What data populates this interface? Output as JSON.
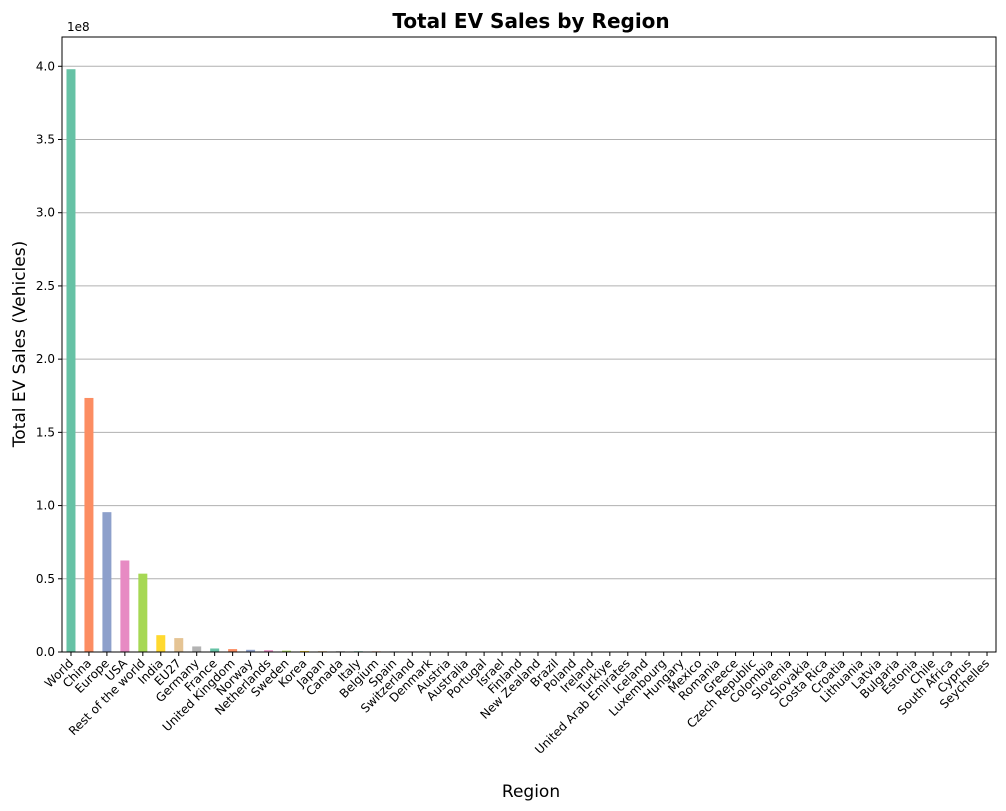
{
  "chart_data": {
    "type": "bar",
    "title": "Total EV Sales by Region",
    "xlabel": "Region",
    "ylabel": "Total EV Sales (Vehicles)",
    "y_offset_label": "1e8",
    "ylim": [
      0,
      420000000
    ],
    "yticks": [
      0,
      50000000,
      100000000,
      150000000,
      200000000,
      250000000,
      300000000,
      350000000,
      400000000
    ],
    "ytick_labels": [
      "0.0",
      "0.5",
      "1.0",
      "1.5",
      "2.0",
      "2.5",
      "3.0",
      "3.5",
      "4.0"
    ],
    "grid": "y",
    "categories": [
      "World",
      "China",
      "Europe",
      "USA",
      "Rest of the world",
      "India",
      "EU27",
      "Germany",
      "France",
      "United Kingdom",
      "Norway",
      "Netherlands",
      "Sweden",
      "Korea",
      "Japan",
      "Canada",
      "Italy",
      "Belgium",
      "Spain",
      "Switzerland",
      "Denmark",
      "Austria",
      "Australia",
      "Portugal",
      "Israel",
      "Finland",
      "New Zealand",
      "Brazil",
      "Poland",
      "Ireland",
      "Turkiye",
      "United Arab Emirates",
      "Iceland",
      "Luxembourg",
      "Hungary",
      "Mexico",
      "Romania",
      "Greece",
      "Czech Republic",
      "Colombia",
      "Slovenia",
      "Slovakia",
      "Costa Rica",
      "Croatia",
      "Lithuania",
      "Latvia",
      "Bulgaria",
      "Estonia",
      "Chile",
      "South Africa",
      "Cyprus",
      "Seychelles"
    ],
    "values": [
      398000000,
      173500000,
      95500000,
      62500000,
      53500000,
      11500000,
      9500000,
      3800000,
      2400000,
      2000000,
      1500000,
      1200000,
      900000,
      700000,
      600000,
      550000,
      500000,
      450000,
      400000,
      380000,
      350000,
      320000,
      300000,
      250000,
      230000,
      200000,
      180000,
      160000,
      150000,
      140000,
      130000,
      120000,
      110000,
      100000,
      90000,
      80000,
      75000,
      70000,
      65000,
      55000,
      50000,
      45000,
      40000,
      35000,
      30000,
      25000,
      22000,
      20000,
      15000,
      10000,
      5000,
      1000
    ],
    "palette": [
      "#66c2a5",
      "#fc8d62",
      "#8da0cb",
      "#e78ac3",
      "#a6d854",
      "#ffd92f",
      "#e5c494",
      "#b3b3b3"
    ]
  }
}
